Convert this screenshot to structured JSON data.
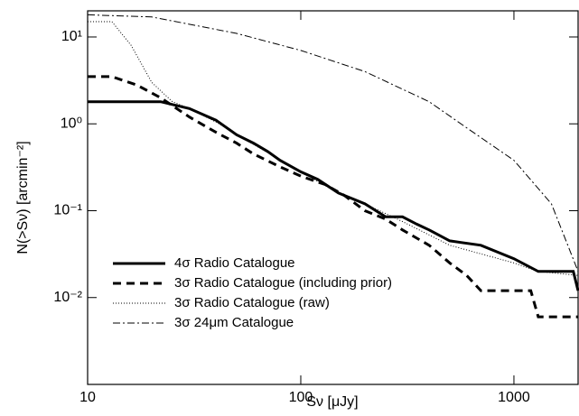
{
  "chart_data": {
    "type": "line",
    "xlabel": "Sν [μJy]",
    "ylabel": "N(>Sν) [arcmin⁻²]",
    "xscale": "log",
    "yscale": "log",
    "xlim": [
      10,
      2000
    ],
    "ylim": [
      0.001,
      20
    ],
    "xticks": [
      10,
      100,
      1000
    ],
    "yticks": [
      {
        "value": 0.01,
        "label": "10⁻²"
      },
      {
        "value": 0.1,
        "label": "10⁻¹"
      },
      {
        "value": 1,
        "label": "10⁰"
      },
      {
        "value": 10,
        "label": "10¹"
      }
    ],
    "legend": "lower left",
    "series": [
      {
        "name": "4σ Radio Catalogue",
        "color": "#000000",
        "dash": "solid",
        "x": [
          10,
          22,
          30,
          40,
          50,
          60,
          70,
          80,
          100,
          120,
          150,
          200,
          250,
          300,
          350,
          400,
          500,
          700,
          1000,
          1300,
          1900,
          2000
        ],
        "values": [
          1.8,
          1.8,
          1.5,
          1.1,
          0.75,
          0.6,
          0.48,
          0.38,
          0.28,
          0.23,
          0.16,
          0.12,
          0.085,
          0.085,
          0.07,
          0.06,
          0.045,
          0.04,
          0.028,
          0.02,
          0.02,
          0.012
        ]
      },
      {
        "name": "3σ Radio Catalogue (including prior)",
        "color": "#000000",
        "dash": "dashed",
        "x": [
          10,
          13,
          17,
          22,
          30,
          40,
          50,
          60,
          80,
          100,
          130,
          160,
          200,
          250,
          300,
          400,
          500,
          600,
          700,
          1200,
          1300,
          2000
        ],
        "values": [
          3.5,
          3.5,
          2.8,
          2.0,
          1.2,
          0.8,
          0.6,
          0.45,
          0.32,
          0.25,
          0.2,
          0.15,
          0.1,
          0.08,
          0.06,
          0.04,
          0.025,
          0.018,
          0.012,
          0.012,
          0.006,
          0.006
        ]
      },
      {
        "name": "3σ Radio Catalogue (raw)",
        "color": "#000000",
        "dash": "dotted",
        "x": [
          10,
          13,
          16,
          20,
          25,
          30,
          40,
          60,
          100,
          150,
          200,
          300,
          500,
          1000,
          1300,
          2000
        ],
        "values": [
          15,
          15,
          8,
          3,
          1.8,
          1.5,
          1.05,
          0.58,
          0.28,
          0.16,
          0.12,
          0.075,
          0.04,
          0.025,
          0.02,
          0.018
        ]
      },
      {
        "name": "3σ 24μm Catalogue",
        "color": "#000000",
        "dash": "dashdot",
        "x": [
          10,
          20,
          50,
          100,
          200,
          400,
          600,
          1000,
          1500,
          2000
        ],
        "values": [
          18,
          17,
          11,
          7,
          4,
          1.8,
          0.9,
          0.38,
          0.12,
          0.02
        ]
      }
    ]
  }
}
